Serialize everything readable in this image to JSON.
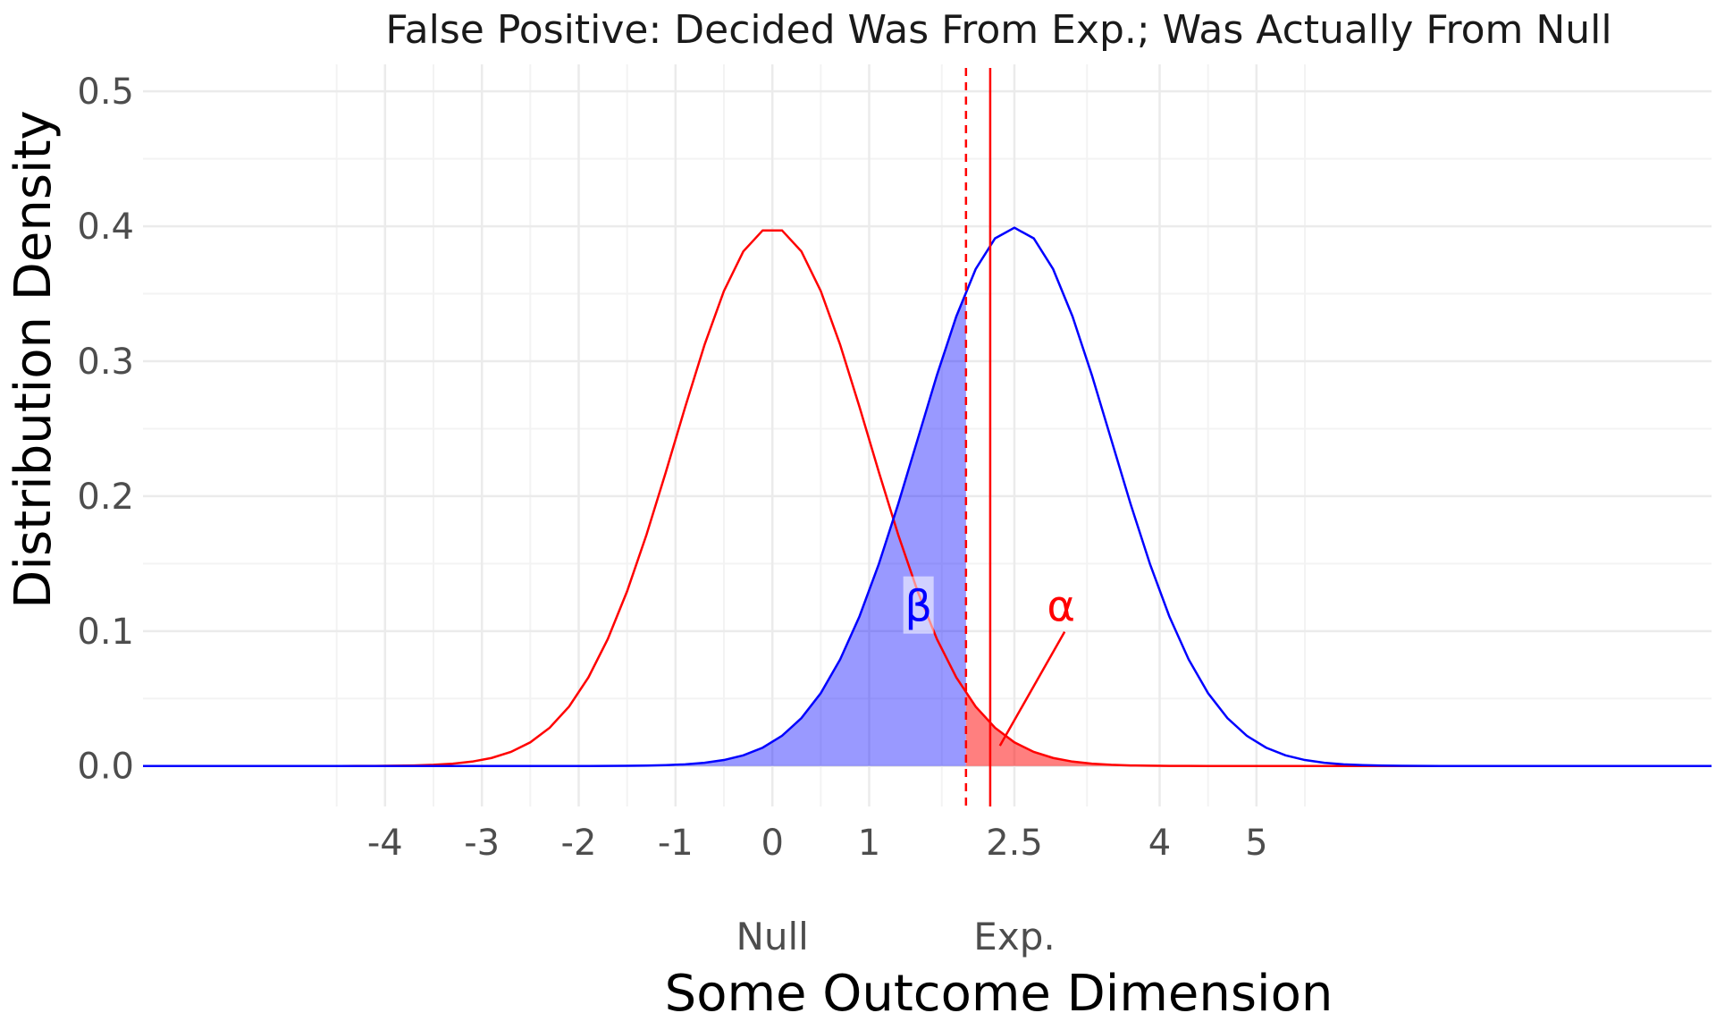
{
  "chart_data": {
    "type": "line",
    "title": "False Positive: Decided Was From Exp.; Was Actually From Null",
    "xlabel": "Some Outcome Dimension",
    "ylabel": "Distribution Density",
    "xlim": [
      -6.5,
      9.7
    ],
    "ylim": [
      -0.03,
      0.52
    ],
    "x_ticks": [
      -4,
      -3,
      -2,
      -1,
      0,
      1,
      2.5,
      4,
      5
    ],
    "x_tick_labels": [
      "-4",
      "-3",
      "-2",
      "-1",
      "0",
      "1",
      "2.5",
      "4",
      "5"
    ],
    "y_ticks": [
      0.0,
      0.1,
      0.2,
      0.3,
      0.4,
      0.5
    ],
    "y_tick_labels": [
      "0.0",
      "0.1",
      "0.2",
      "0.3",
      "0.4",
      "0.5"
    ],
    "group_labels": [
      {
        "text": "Null",
        "x": 0
      },
      {
        "text": "Exp.",
        "x": 2.5
      }
    ],
    "series": [
      {
        "distribution": "normal",
        "mean": 0,
        "sd": 1,
        "color": "#ff0000",
        "x_range": [
          -6.5,
          9.7
        ]
      },
      {
        "distribution": "normal",
        "mean": 2.5,
        "sd": 1,
        "color": "#0000ff",
        "x_range": [
          -6.5,
          9.7
        ]
      }
    ],
    "vertical_lines": [
      {
        "x": 2.0,
        "color": "#ff0000",
        "style": "dashed"
      },
      {
        "x": 2.25,
        "color": "#ff0000",
        "style": "solid"
      }
    ],
    "shaded_regions": [
      {
        "label": "β",
        "under": "blue curve",
        "from": -6.5,
        "to": 2.0,
        "color": "#0000ff",
        "opacity": 0.4
      },
      {
        "label": "α",
        "under": "red curve",
        "from": 2.0,
        "to": 9.7,
        "color": "#ff0000",
        "opacity": 0.5
      }
    ],
    "annotations": [
      {
        "text": "β",
        "x": 1.5,
        "y": 0.118,
        "color": "#0000ff"
      },
      {
        "text": "α",
        "x": 3.0,
        "y": 0.118,
        "color": "#ff0000",
        "arrow_to": [
          2.35,
          0.015
        ]
      }
    ],
    "grid": true,
    "legend": "none"
  }
}
